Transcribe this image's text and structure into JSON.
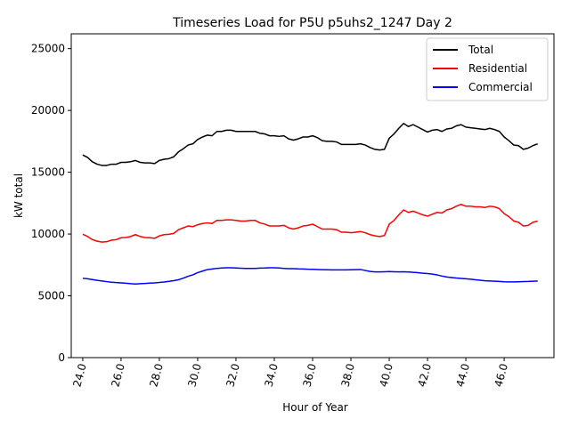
{
  "chart_data": {
    "type": "line",
    "title": "Timeseries Load for P5U p5uhs2_1247  Day 2",
    "xlabel": "Hour of Year",
    "ylabel": "kW total",
    "xlim": [
      23.4,
      48.6
    ],
    "ylim": [
      0,
      26200
    ],
    "xticks": [
      24,
      26,
      28,
      30,
      32,
      34,
      36,
      38,
      40,
      42,
      44,
      46
    ],
    "xtick_labels": [
      "24.0",
      "26.0",
      "28.0",
      "30.0",
      "32.0",
      "34.0",
      "36.0",
      "38.0",
      "40.0",
      "42.0",
      "44.0",
      "46.0"
    ],
    "yticks": [
      0,
      5000,
      10000,
      15000,
      20000,
      25000
    ],
    "ytick_labels": [
      "0",
      "5000",
      "10000",
      "15000",
      "20000",
      "25000"
    ],
    "legend_position": "top-right",
    "x": [
      24,
      24.25,
      24.5,
      24.75,
      25,
      25.25,
      25.5,
      25.75,
      26,
      26.25,
      26.5,
      26.75,
      27,
      27.25,
      27.5,
      27.75,
      28,
      28.25,
      28.5,
      28.75,
      29,
      29.25,
      29.5,
      29.75,
      30,
      30.25,
      30.5,
      30.75,
      31,
      31.25,
      31.5,
      31.75,
      32,
      32.25,
      32.5,
      32.75,
      33,
      33.25,
      33.5,
      33.75,
      34,
      34.25,
      34.5,
      34.75,
      35,
      35.25,
      35.5,
      35.75,
      36,
      36.25,
      36.5,
      36.75,
      37,
      37.25,
      37.5,
      37.75,
      38,
      38.25,
      38.5,
      38.75,
      39,
      39.25,
      39.5,
      39.75,
      40,
      40.25,
      40.5,
      40.75,
      41,
      41.25,
      41.5,
      41.75,
      42,
      42.25,
      42.5,
      42.75,
      43,
      43.25,
      43.5,
      43.75,
      44,
      44.25,
      44.5,
      44.75,
      45,
      45.25,
      45.5,
      45.75,
      46,
      46.25,
      46.5,
      46.75,
      47,
      47.25,
      47.5,
      47.75
    ],
    "series": [
      {
        "name": "Total",
        "color": "#000000",
        "values": [
          16400,
          16200,
          15850,
          15650,
          15550,
          15550,
          15650,
          15650,
          15800,
          15800,
          15850,
          15950,
          15800,
          15750,
          15750,
          15700,
          15950,
          16050,
          16100,
          16250,
          16650,
          16900,
          17200,
          17300,
          17650,
          17850,
          18000,
          17950,
          18300,
          18300,
          18400,
          18400,
          18300,
          18300,
          18300,
          18300,
          18300,
          18150,
          18100,
          17950,
          17950,
          17900,
          17950,
          17700,
          17600,
          17700,
          17850,
          17850,
          17950,
          17800,
          17550,
          17500,
          17500,
          17450,
          17250,
          17250,
          17250,
          17250,
          17300,
          17200,
          17000,
          16850,
          16800,
          16850,
          17750,
          18100,
          18550,
          18950,
          18700,
          18850,
          18650,
          18450,
          18250,
          18400,
          18450,
          18300,
          18500,
          18550,
          18750,
          18850,
          18650,
          18600,
          18550,
          18500,
          18450,
          18550,
          18450,
          18300,
          17850,
          17550,
          17200,
          17150,
          16850,
          16950,
          17150,
          17300
        ]
      },
      {
        "name": "Residential",
        "color": "#ff0000",
        "values": [
          9980,
          9800,
          9550,
          9420,
          9350,
          9380,
          9500,
          9550,
          9700,
          9720,
          9800,
          9950,
          9800,
          9720,
          9700,
          9650,
          9850,
          9950,
          9980,
          10050,
          10350,
          10500,
          10650,
          10600,
          10750,
          10850,
          10900,
          10850,
          11100,
          11100,
          11150,
          11150,
          11100,
          11050,
          11050,
          11100,
          11100,
          10900,
          10800,
          10650,
          10650,
          10650,
          10700,
          10500,
          10400,
          10500,
          10650,
          10700,
          10800,
          10600,
          10400,
          10400,
          10400,
          10350,
          10150,
          10150,
          10100,
          10150,
          10200,
          10100,
          9950,
          9850,
          9800,
          9880,
          10800,
          11100,
          11550,
          11950,
          11750,
          11850,
          11700,
          11550,
          11450,
          11600,
          11750,
          11700,
          11950,
          12050,
          12250,
          12400,
          12250,
          12250,
          12200,
          12200,
          12150,
          12250,
          12200,
          12050,
          11650,
          11400,
          11050,
          10950,
          10650,
          10700,
          10950,
          11050
        ]
      },
      {
        "name": "Commercial",
        "color": "#0000ff",
        "values": [
          6420,
          6380,
          6320,
          6250,
          6200,
          6150,
          6100,
          6070,
          6050,
          6020,
          5980,
          5960,
          5980,
          6000,
          6030,
          6050,
          6080,
          6120,
          6170,
          6230,
          6300,
          6430,
          6580,
          6700,
          6880,
          7000,
          7120,
          7170,
          7220,
          7250,
          7270,
          7270,
          7250,
          7230,
          7220,
          7220,
          7220,
          7240,
          7250,
          7270,
          7270,
          7250,
          7220,
          7200,
          7200,
          7180,
          7170,
          7150,
          7140,
          7130,
          7120,
          7110,
          7100,
          7100,
          7100,
          7100,
          7110,
          7120,
          7130,
          7050,
          6970,
          6940,
          6940,
          6950,
          6960,
          6950,
          6940,
          6950,
          6930,
          6900,
          6870,
          6830,
          6800,
          6760,
          6690,
          6600,
          6520,
          6480,
          6440,
          6410,
          6380,
          6340,
          6300,
          6260,
          6220,
          6200,
          6180,
          6160,
          6140,
          6130,
          6130,
          6140,
          6150,
          6160,
          6180,
          6200
        ]
      }
    ]
  }
}
